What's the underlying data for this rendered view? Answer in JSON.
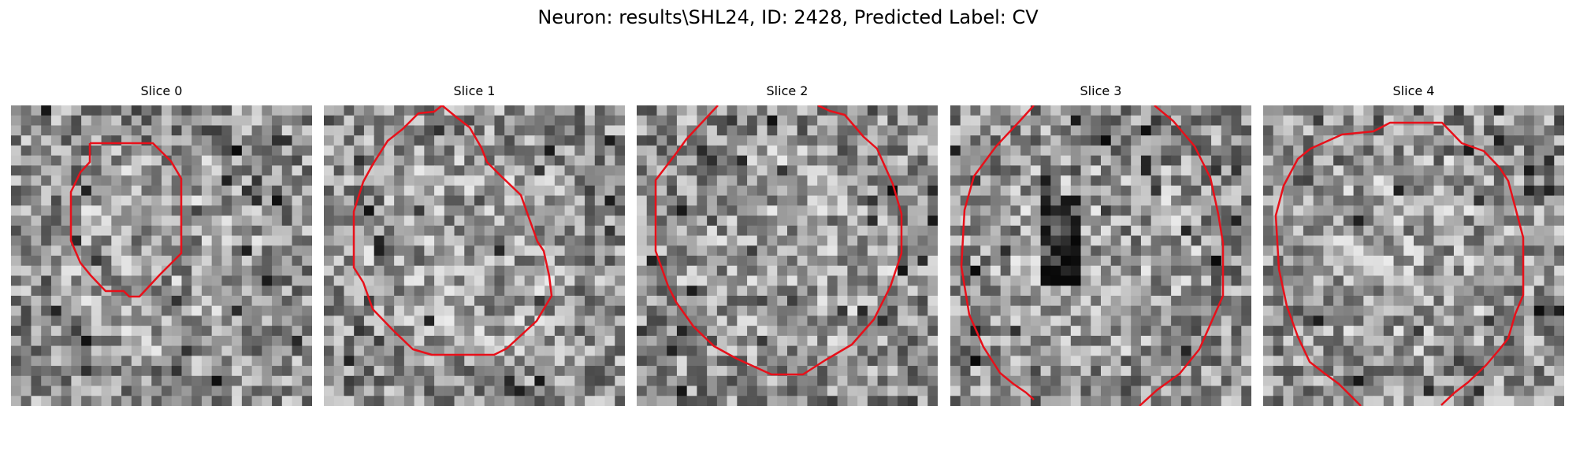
{
  "figure": {
    "title": "Neuron: results\\SHL24, ID: 2428, Predicted Label: CV"
  },
  "panels": [
    {
      "title": "Slice 0",
      "seed": 11,
      "dark_center": false
    },
    {
      "title": "Slice 1",
      "seed": 23,
      "dark_center": false
    },
    {
      "title": "Slice 2",
      "seed": 37,
      "dark_center": false
    },
    {
      "title": "Slice 3",
      "seed": 41,
      "dark_center": true
    },
    {
      "title": "Slice 4",
      "seed": 59,
      "dark_center": false
    }
  ],
  "colors": {
    "contour": "#e8101a",
    "background": "#ffffff"
  }
}
